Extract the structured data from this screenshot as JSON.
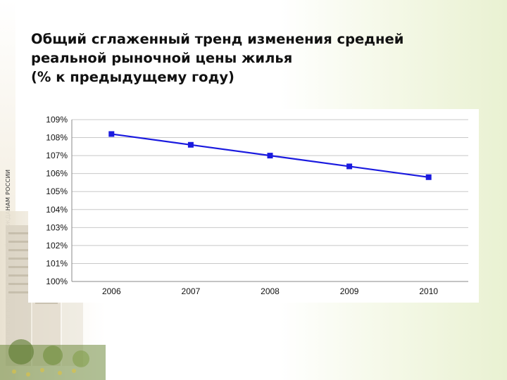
{
  "side_caption": "ДОСТУПНОЕ И КОМФОРТНОЕ ЖИЛЬЁ - ГРАЖДАНАМ РОССИИ",
  "title_lines": [
    "Общий сглаженный тренд изменения средней",
    "реальной рыночной цены жилья",
    "(% к предыдущему году)"
  ],
  "colors": {
    "line": "#1a1adf",
    "marker": "#1a1adf",
    "grid": "#c8c8c8"
  },
  "chart_data": {
    "type": "line",
    "title": "",
    "xlabel": "",
    "ylabel": "",
    "categories": [
      "2006",
      "2007",
      "2008",
      "2009",
      "2010"
    ],
    "values": [
      108.2,
      107.6,
      107.0,
      106.4,
      105.8
    ],
    "ylim": [
      100,
      109
    ],
    "yticks": [
      "100%",
      "101%",
      "102%",
      "103%",
      "104%",
      "105%",
      "106%",
      "107%",
      "108%",
      "109%"
    ],
    "grid": true,
    "legend": "none"
  }
}
